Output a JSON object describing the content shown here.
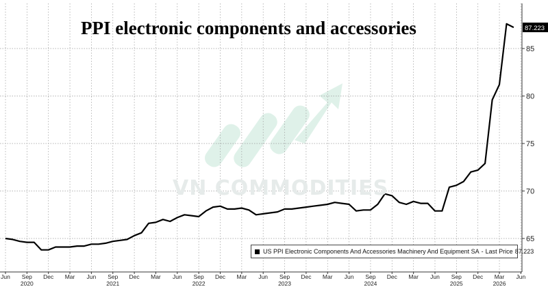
{
  "chart_data": {
    "type": "line",
    "title": "PPI electronic components and accessories",
    "xlabel": "",
    "ylabel": "",
    "ylim": [
      62.6,
      88.6
    ],
    "y_ticks": [
      65,
      70,
      75,
      80,
      85
    ],
    "y_tick_labels": [
      "65",
      "70",
      "75",
      "80",
      "85"
    ],
    "grid": "vertical-dotted",
    "legend_position": "bottom-right",
    "x_tick_labels": [
      "Jun",
      "Sep",
      "Dec",
      "Mar",
      "Jun",
      "Sep",
      "Dec",
      "Mar",
      "Jun",
      "Sep",
      "Dec",
      "Mar",
      "Jun",
      "Sep",
      "Dec",
      "Mar",
      "Jun",
      "Sep",
      "Dec",
      "Mar",
      "Jun",
      "Sep",
      "Dec",
      "Mar",
      "Jun"
    ],
    "x_year_labels": [
      "2020",
      "2021",
      "2022",
      "2023",
      "2024",
      "2025",
      "2026"
    ],
    "series": [
      {
        "name": "US PPI Electronic Components And Accessories Machinery And Equipment SA",
        "last_price_label": "Last Price",
        "last_value": "87.223",
        "color": "#000000",
        "x": [
          "2020-06",
          "2020-07",
          "2020-08",
          "2020-09",
          "2020-10",
          "2020-11",
          "2020-12",
          "2021-01",
          "2021-02",
          "2021-03",
          "2021-04",
          "2021-05",
          "2021-06",
          "2021-07",
          "2021-08",
          "2021-09",
          "2021-10",
          "2021-11",
          "2021-12",
          "2022-01",
          "2022-02",
          "2022-03",
          "2022-04",
          "2022-05",
          "2022-06",
          "2022-07",
          "2022-08",
          "2022-09",
          "2022-10",
          "2022-11",
          "2022-12",
          "2023-01",
          "2023-02",
          "2023-03",
          "2023-04",
          "2023-05",
          "2023-06",
          "2023-07",
          "2023-08",
          "2023-09",
          "2023-10",
          "2023-11",
          "2023-12",
          "2024-01",
          "2024-02",
          "2024-03",
          "2024-04",
          "2024-05",
          "2024-06",
          "2024-07",
          "2024-08",
          "2024-09",
          "2024-10",
          "2024-11",
          "2024-12",
          "2025-01",
          "2025-02",
          "2025-03",
          "2025-04",
          "2025-05",
          "2025-06",
          "2025-07",
          "2025-08",
          "2025-09",
          "2025-10",
          "2025-11",
          "2025-12",
          "2026-01",
          "2026-02",
          "2026-03",
          "2026-04",
          "2026-05"
        ],
        "values": [
          65.0,
          64.9,
          64.7,
          64.6,
          64.6,
          63.8,
          63.8,
          64.1,
          64.1,
          64.1,
          64.2,
          64.2,
          64.4,
          64.4,
          64.5,
          64.7,
          64.8,
          64.9,
          65.3,
          65.6,
          66.6,
          66.7,
          67.0,
          66.8,
          67.2,
          67.5,
          67.4,
          67.3,
          67.9,
          68.3,
          68.4,
          68.1,
          68.1,
          68.2,
          68.0,
          67.5,
          67.6,
          67.7,
          67.8,
          68.1,
          68.1,
          68.2,
          68.3,
          68.4,
          68.5,
          68.6,
          68.8,
          68.7,
          68.6,
          67.9,
          68.0,
          68.0,
          68.6,
          69.7,
          69.5,
          68.8,
          68.6,
          68.9,
          68.7,
          68.7,
          67.9,
          67.9,
          70.4,
          70.6,
          71.0,
          72.0,
          72.2,
          72.9,
          79.6,
          81.2,
          87.6,
          87.223
        ]
      }
    ]
  },
  "watermark": {
    "text": "VN COMMODITIES",
    "color": "#d9eee4"
  },
  "colors": {
    "line": "#000000",
    "grid": "#9a9a9a",
    "axis": "#333333",
    "last_price_box": "#000000"
  }
}
